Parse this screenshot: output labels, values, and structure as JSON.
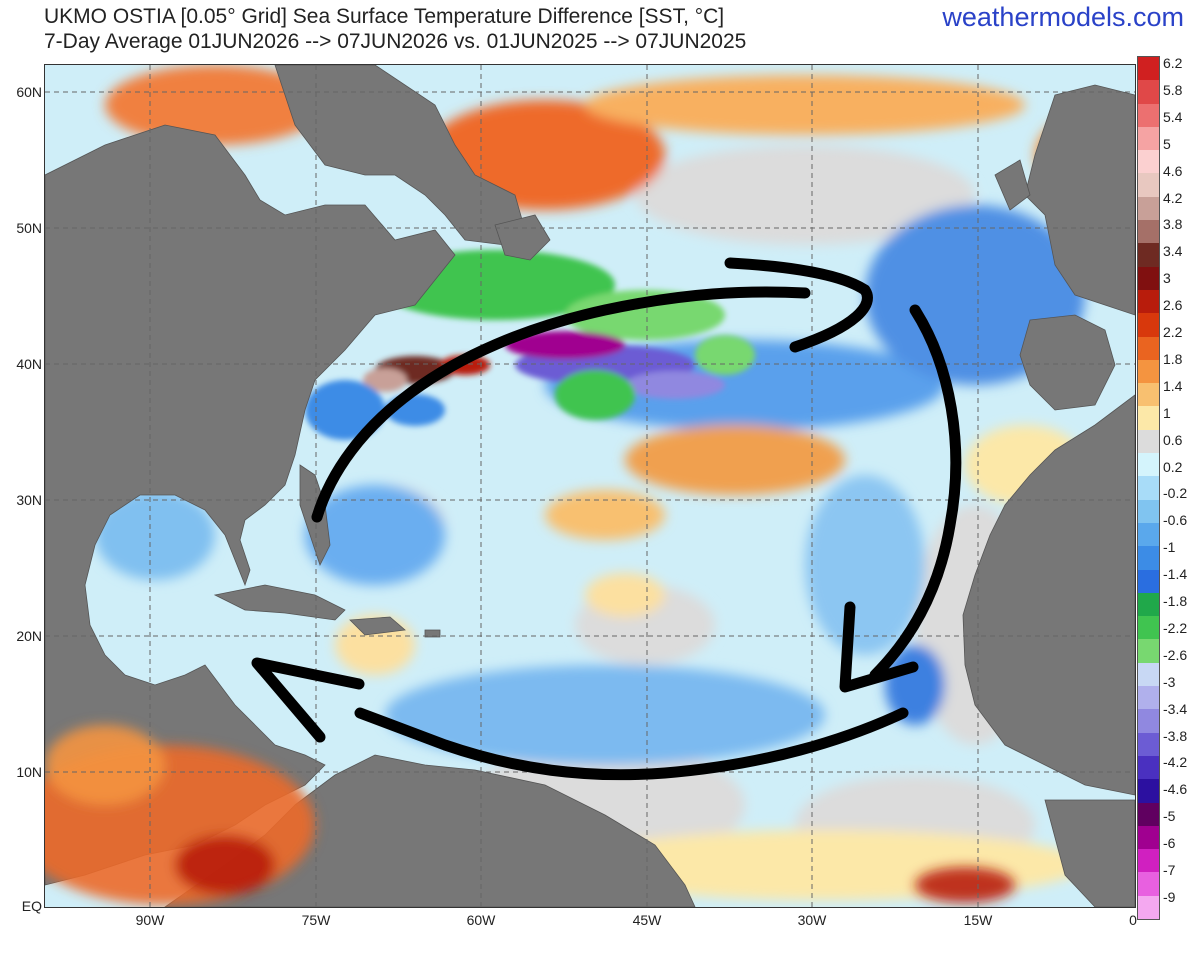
{
  "header": {
    "title_line1": "UKMO OSTIA [0.05° Grid] Sea Surface Temperature  Difference [SST, °C]",
    "title_line2": "7-Day Average 01JUN2026 --> 07JUN2026  vs. 01JUN2025 --> 07JUN2025",
    "brand": "weathermodels.com"
  },
  "map": {
    "lat_labels": [
      "60N",
      "50N",
      "40N",
      "30N",
      "20N",
      "10N",
      "EQ"
    ],
    "lon_labels": [
      "90W",
      "75W",
      "60W",
      "45W",
      "30W",
      "15W",
      "0"
    ],
    "land_color": "#777777",
    "annotation": "hand-drawn black arrows showing clockwise North Atlantic gyre circulation"
  },
  "colorbar": {
    "labels": [
      "6.2",
      "5.8",
      "5.4",
      "5",
      "4.6",
      "4.2",
      "3.8",
      "3.4",
      "3",
      "2.6",
      "2.2",
      "1.8",
      "1.4",
      "1",
      "0.6",
      "0.2",
      "-0.2",
      "-0.6",
      "-1",
      "-1.4",
      "-1.8",
      "-2.2",
      "-2.6",
      "-3",
      "-3.4",
      "-3.8",
      "-4.2",
      "-4.6",
      "-5",
      "-6",
      "-7",
      "-9"
    ],
    "colors": [
      "#d02020",
      "#e04848",
      "#ec7070",
      "#f5a3a3",
      "#fbd0d0",
      "#e8c8c0",
      "#c8a098",
      "#a57068",
      "#6e2a22",
      "#801010",
      "#b81c0c",
      "#d8380c",
      "#ea6420",
      "#f49440",
      "#f8c070",
      "#fce8a8",
      "#dcdcdc",
      "#d4f4fc",
      "#a8dcf8",
      "#80c4f0",
      "#5aa8ec",
      "#3c8ce6",
      "#2a6ee0",
      "#20a84a",
      "#40c450",
      "#78d870",
      "#c8d8f4",
      "#b0b0ec",
      "#9088e0",
      "#6c5cd4",
      "#4a30c0",
      "#2c10a0",
      "#600060",
      "#a00090",
      "#d020c0",
      "#e860e0",
      "#f4a8f0"
    ]
  }
}
